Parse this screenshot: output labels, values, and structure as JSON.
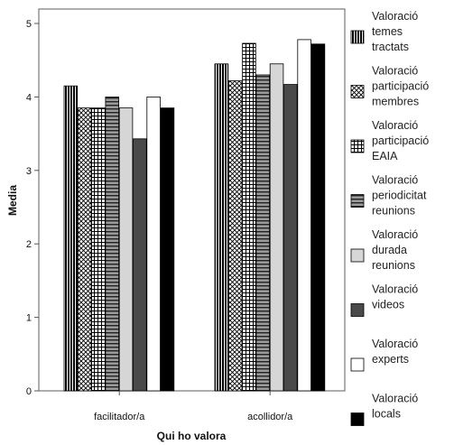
{
  "chart_data": {
    "type": "bar",
    "xlabel": "Qui ho valora",
    "ylabel": "Media",
    "ylim": [
      0,
      5
    ],
    "yticks": [
      0,
      1,
      2,
      3,
      4,
      5
    ],
    "grid": false,
    "legend_position": "right",
    "categories": [
      "facilitador/a",
      "acollidor/a"
    ],
    "series": [
      {
        "name": "Valoració temes tractats",
        "pattern": "vertical-dense",
        "values": [
          4.15,
          4.45
        ]
      },
      {
        "name": "Valoració participació membres",
        "pattern": "crosshatch",
        "values": [
          3.85,
          4.22
        ]
      },
      {
        "name": "Valoració participació EAIA",
        "pattern": "grid",
        "values": [
          3.85,
          4.73
        ]
      },
      {
        "name": "Valoració periodicitat reunions",
        "pattern": "horizontal-lines",
        "values": [
          4.0,
          4.3
        ]
      },
      {
        "name": "Valoració durada reunions",
        "pattern": "light-gray",
        "values": [
          3.85,
          4.45
        ]
      },
      {
        "name": "Valoració videos",
        "pattern": "dark-gray",
        "values": [
          3.43,
          4.17
        ]
      },
      {
        "name": "Valoració experts",
        "pattern": "white",
        "values": [
          4.0,
          4.78
        ]
      },
      {
        "name": "Valoració locals",
        "pattern": "black",
        "values": [
          3.85,
          4.72
        ]
      }
    ]
  }
}
